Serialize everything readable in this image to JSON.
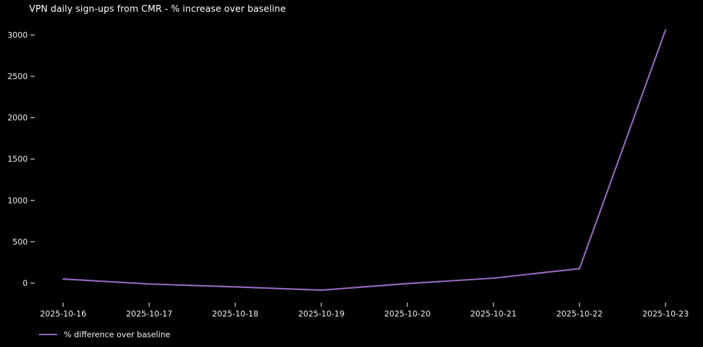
{
  "chart": {
    "title": "VPN daily sign-ups from CMR - % increase over baseline",
    "legend_label": "% difference over baseline"
  },
  "chart_data": {
    "type": "line",
    "title": "VPN daily sign-ups from CMR - % increase over baseline",
    "x": [
      "2025-10-16",
      "2025-10-17",
      "2025-10-18",
      "2025-10-19",
      "2025-10-20",
      "2025-10-21",
      "2025-10-22",
      "2025-10-23"
    ],
    "series": [
      {
        "name": "% difference over baseline",
        "values": [
          50,
          -10,
          -45,
          -85,
          -5,
          60,
          175,
          3060
        ],
        "color": "#9467bd"
      }
    ],
    "xlabel": "",
    "ylabel": "",
    "yticks": [
      0,
      500,
      1000,
      1500,
      2000,
      2500,
      3000
    ],
    "ylim": [
      -230,
      3170
    ],
    "grid": false,
    "background": "#000000",
    "text_color": "#efefef",
    "legend_position": "bottom-left"
  }
}
